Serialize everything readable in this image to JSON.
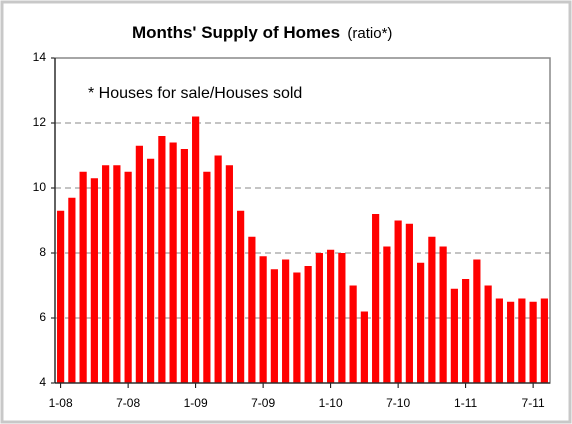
{
  "chart_data": {
    "type": "bar",
    "title": "Months'  Supply  of Homes",
    "subtitle": "(ratio*)",
    "annotation": "* Houses for sale/Houses sold",
    "categories": [
      "1-08",
      null,
      null,
      null,
      null,
      null,
      "7-08",
      null,
      null,
      null,
      null,
      null,
      "1-09",
      null,
      null,
      null,
      null,
      null,
      "7-09",
      null,
      null,
      null,
      null,
      null,
      "1-10",
      null,
      null,
      null,
      null,
      null,
      "7-10",
      null,
      null,
      null,
      null,
      null,
      "1-11",
      null,
      null,
      null,
      null,
      null,
      "7-11",
      null
    ],
    "values": [
      9.3,
      9.7,
      10.5,
      10.3,
      10.7,
      10.7,
      10.5,
      11.3,
      10.9,
      11.6,
      11.4,
      11.2,
      12.2,
      10.5,
      11.0,
      10.7,
      9.3,
      8.5,
      7.9,
      7.5,
      7.8,
      7.4,
      7.6,
      8.0,
      8.1,
      8.0,
      7.0,
      6.2,
      9.2,
      8.2,
      9.0,
      8.9,
      7.7,
      8.5,
      8.2,
      6.9,
      7.2,
      7.8,
      7.0,
      6.6,
      6.5,
      6.6,
      6.5,
      6.6
    ],
    "color": "#ff0000",
    "ylim": [
      4,
      14
    ],
    "yticks": [
      4,
      6,
      8,
      10,
      12,
      14
    ],
    "grid": true
  }
}
